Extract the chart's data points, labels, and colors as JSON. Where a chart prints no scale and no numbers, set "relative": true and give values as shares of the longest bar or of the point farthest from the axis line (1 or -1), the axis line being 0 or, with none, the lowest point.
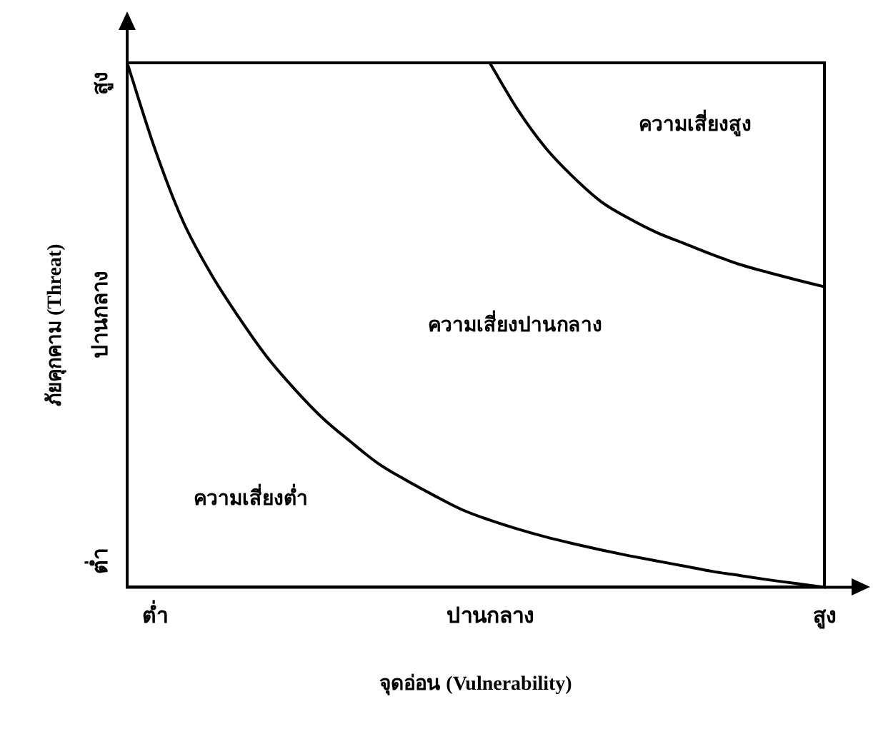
{
  "chart_data": {
    "type": "line",
    "xlabel": "จุดอ่อน (Vulnerability)",
    "ylabel": "ภัยคุกคาม (Threat)",
    "relative": true,
    "categories": [
      null,
      "ต่ำ",
      null,
      null,
      null,
      null,
      null,
      null,
      null,
      null,
      null,
      null,
      null,
      "ปานกลาง",
      null,
      null,
      null,
      null,
      null,
      null,
      null,
      null,
      null,
      null,
      null,
      "สูง"
    ],
    "series": [
      {
        "color": "#000000",
        "values": [
          1,
          0.835,
          0.698,
          0.598,
          0.515,
          0.44,
          0.378,
          0.323,
          0.278,
          0.236,
          0.204,
          0.175,
          0.148,
          0.128,
          0.111,
          0.096,
          0.083,
          0.071,
          0.06,
          0.05,
          0.04,
          0.03,
          0.022,
          0.014,
          0.007,
          0
        ]
      },
      {
        "color": "#000000",
        "values": [
          null,
          null,
          null,
          null,
          null,
          null,
          null,
          null,
          null,
          null,
          null,
          null,
          null,
          1,
          0.911,
          0.838,
          0.782,
          0.735,
          0.703,
          0.676,
          0.655,
          0.634,
          0.615,
          0.6,
          0.586,
          0.573
        ]
      }
    ],
    "annotations": [
      "ต่ำ",
      "ปานกลาง",
      "สูง",
      "ความเสี่ยงต่ำ",
      "ความเสี่ยงปานกลาง",
      "ความเสี่ยงสูง"
    ],
    "grid": false,
    "legend": false,
    "marker": "none",
    "line_style": "solid"
  }
}
